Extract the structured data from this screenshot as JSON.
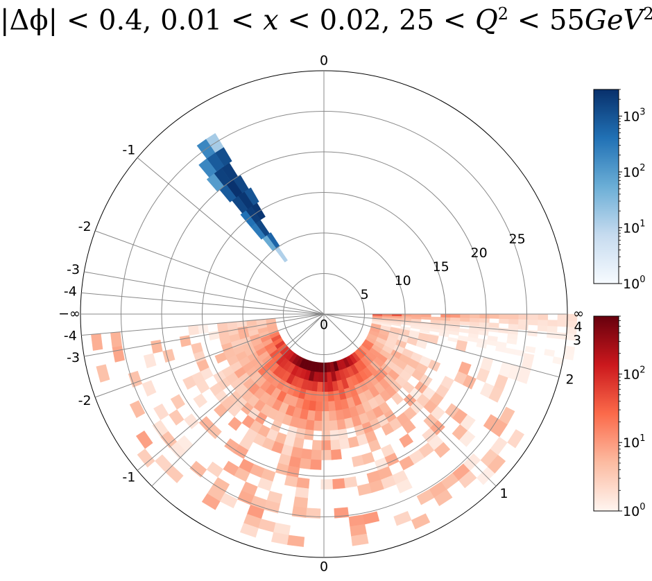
{
  "chart_data": {
    "type": "heatmap",
    "projection": "polar",
    "title": "|Δϕ| < 0.4, 0.01 < x < 0.02, 25 < Q² < 55GeV²",
    "title_parts": {
      "delta_phi": "|Δϕ| < 0.4,",
      "x_a": "0.01 < ",
      "x_var": "x",
      "x_b": " < 0.02,",
      "q_a": "25 < ",
      "q_var": "Q",
      "q_exp": "2",
      "q_b": " < 55",
      "gev": "GeV",
      "gev_exp": "2"
    },
    "radial_ticks": [
      "5",
      "10",
      "15",
      "20",
      "25"
    ],
    "radial_tick_values": [
      5,
      10,
      15,
      20,
      25
    ],
    "radial_ring_values": [
      5,
      10,
      15,
      20,
      25,
      30
    ],
    "center_label": "0",
    "angular_ticks_left": [
      "0",
      "-1",
      "-2",
      "-3",
      "-4",
      "−∞",
      "-4",
      "-3",
      "-2",
      "-1",
      "0"
    ],
    "angular_ticks_right": [
      "∞",
      "4",
      "3",
      "2",
      "1"
    ],
    "colorbars": [
      {
        "name": "blue",
        "cmap": "Blues",
        "scale": "log",
        "ticks": [
          "10",
          "10",
          "10",
          "10"
        ],
        "tick_exponents": [
          "0",
          "1",
          "2",
          "3"
        ],
        "range": [
          1,
          3000
        ]
      },
      {
        "name": "red",
        "cmap": "Reds",
        "scale": "log",
        "ticks": [
          "10",
          "10",
          "10"
        ],
        "tick_exponents": [
          "0",
          "1",
          "2"
        ],
        "range": [
          1,
          700
        ]
      }
    ],
    "blue_cells": [
      {
        "a": 124,
        "r": 8,
        "v": 12
      },
      {
        "a": 123,
        "r": 10,
        "v": 600
      },
      {
        "a": 126,
        "r": 10,
        "v": 60
      },
      {
        "a": 124,
        "r": 12,
        "v": 1500
      },
      {
        "a": 127,
        "r": 12,
        "v": 300
      },
      {
        "a": 121,
        "r": 14,
        "v": 2500
      },
      {
        "a": 124,
        "r": 14,
        "v": 2000
      },
      {
        "a": 127,
        "r": 14,
        "v": 400
      },
      {
        "a": 120,
        "r": 16,
        "v": 1000
      },
      {
        "a": 123,
        "r": 16,
        "v": 2500
      },
      {
        "a": 126,
        "r": 16,
        "v": 1500
      },
      {
        "a": 121,
        "r": 18,
        "v": 1500
      },
      {
        "a": 124,
        "r": 18,
        "v": 2800
      },
      {
        "a": 127,
        "r": 18,
        "v": 800
      },
      {
        "a": 122,
        "r": 20,
        "v": 2000
      },
      {
        "a": 125,
        "r": 20,
        "v": 1800
      },
      {
        "a": 128,
        "r": 20,
        "v": 100
      },
      {
        "a": 121,
        "r": 22,
        "v": 1200
      },
      {
        "a": 124,
        "r": 22,
        "v": 800
      },
      {
        "a": 127,
        "r": 22,
        "v": 200
      },
      {
        "a": 121,
        "r": 24,
        "v": 15
      },
      {
        "a": 124,
        "r": 24,
        "v": 200
      }
    ]
  }
}
